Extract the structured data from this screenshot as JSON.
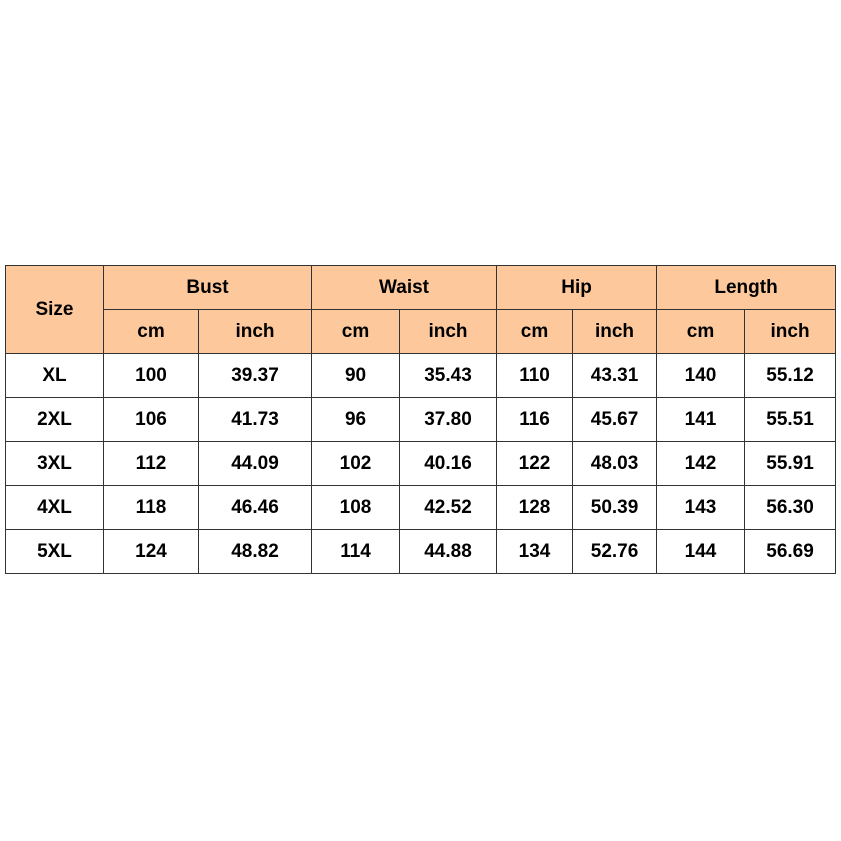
{
  "table": {
    "size_label": "Size",
    "groups": [
      {
        "label": "Bust",
        "units": [
          "cm",
          "inch"
        ]
      },
      {
        "label": "Waist",
        "units": [
          "cm",
          "inch"
        ]
      },
      {
        "label": "Hip",
        "units": [
          "cm",
          "inch"
        ]
      },
      {
        "label": "Length",
        "units": [
          "cm",
          "inch"
        ]
      }
    ],
    "rows": [
      [
        "XL",
        "100",
        "39.37",
        "90",
        "35.43",
        "110",
        "43.31",
        "140",
        "55.12"
      ],
      [
        "2XL",
        "106",
        "41.73",
        "96",
        "37.80",
        "116",
        "45.67",
        "141",
        "55.51"
      ],
      [
        "3XL",
        "112",
        "44.09",
        "102",
        "40.16",
        "122",
        "48.03",
        "142",
        "55.91"
      ],
      [
        "4XL",
        "118",
        "46.46",
        "108",
        "42.52",
        "128",
        "50.39",
        "143",
        "56.30"
      ],
      [
        "5XL",
        "124",
        "48.82",
        "114",
        "44.88",
        "134",
        "52.76",
        "144",
        "56.69"
      ]
    ]
  }
}
